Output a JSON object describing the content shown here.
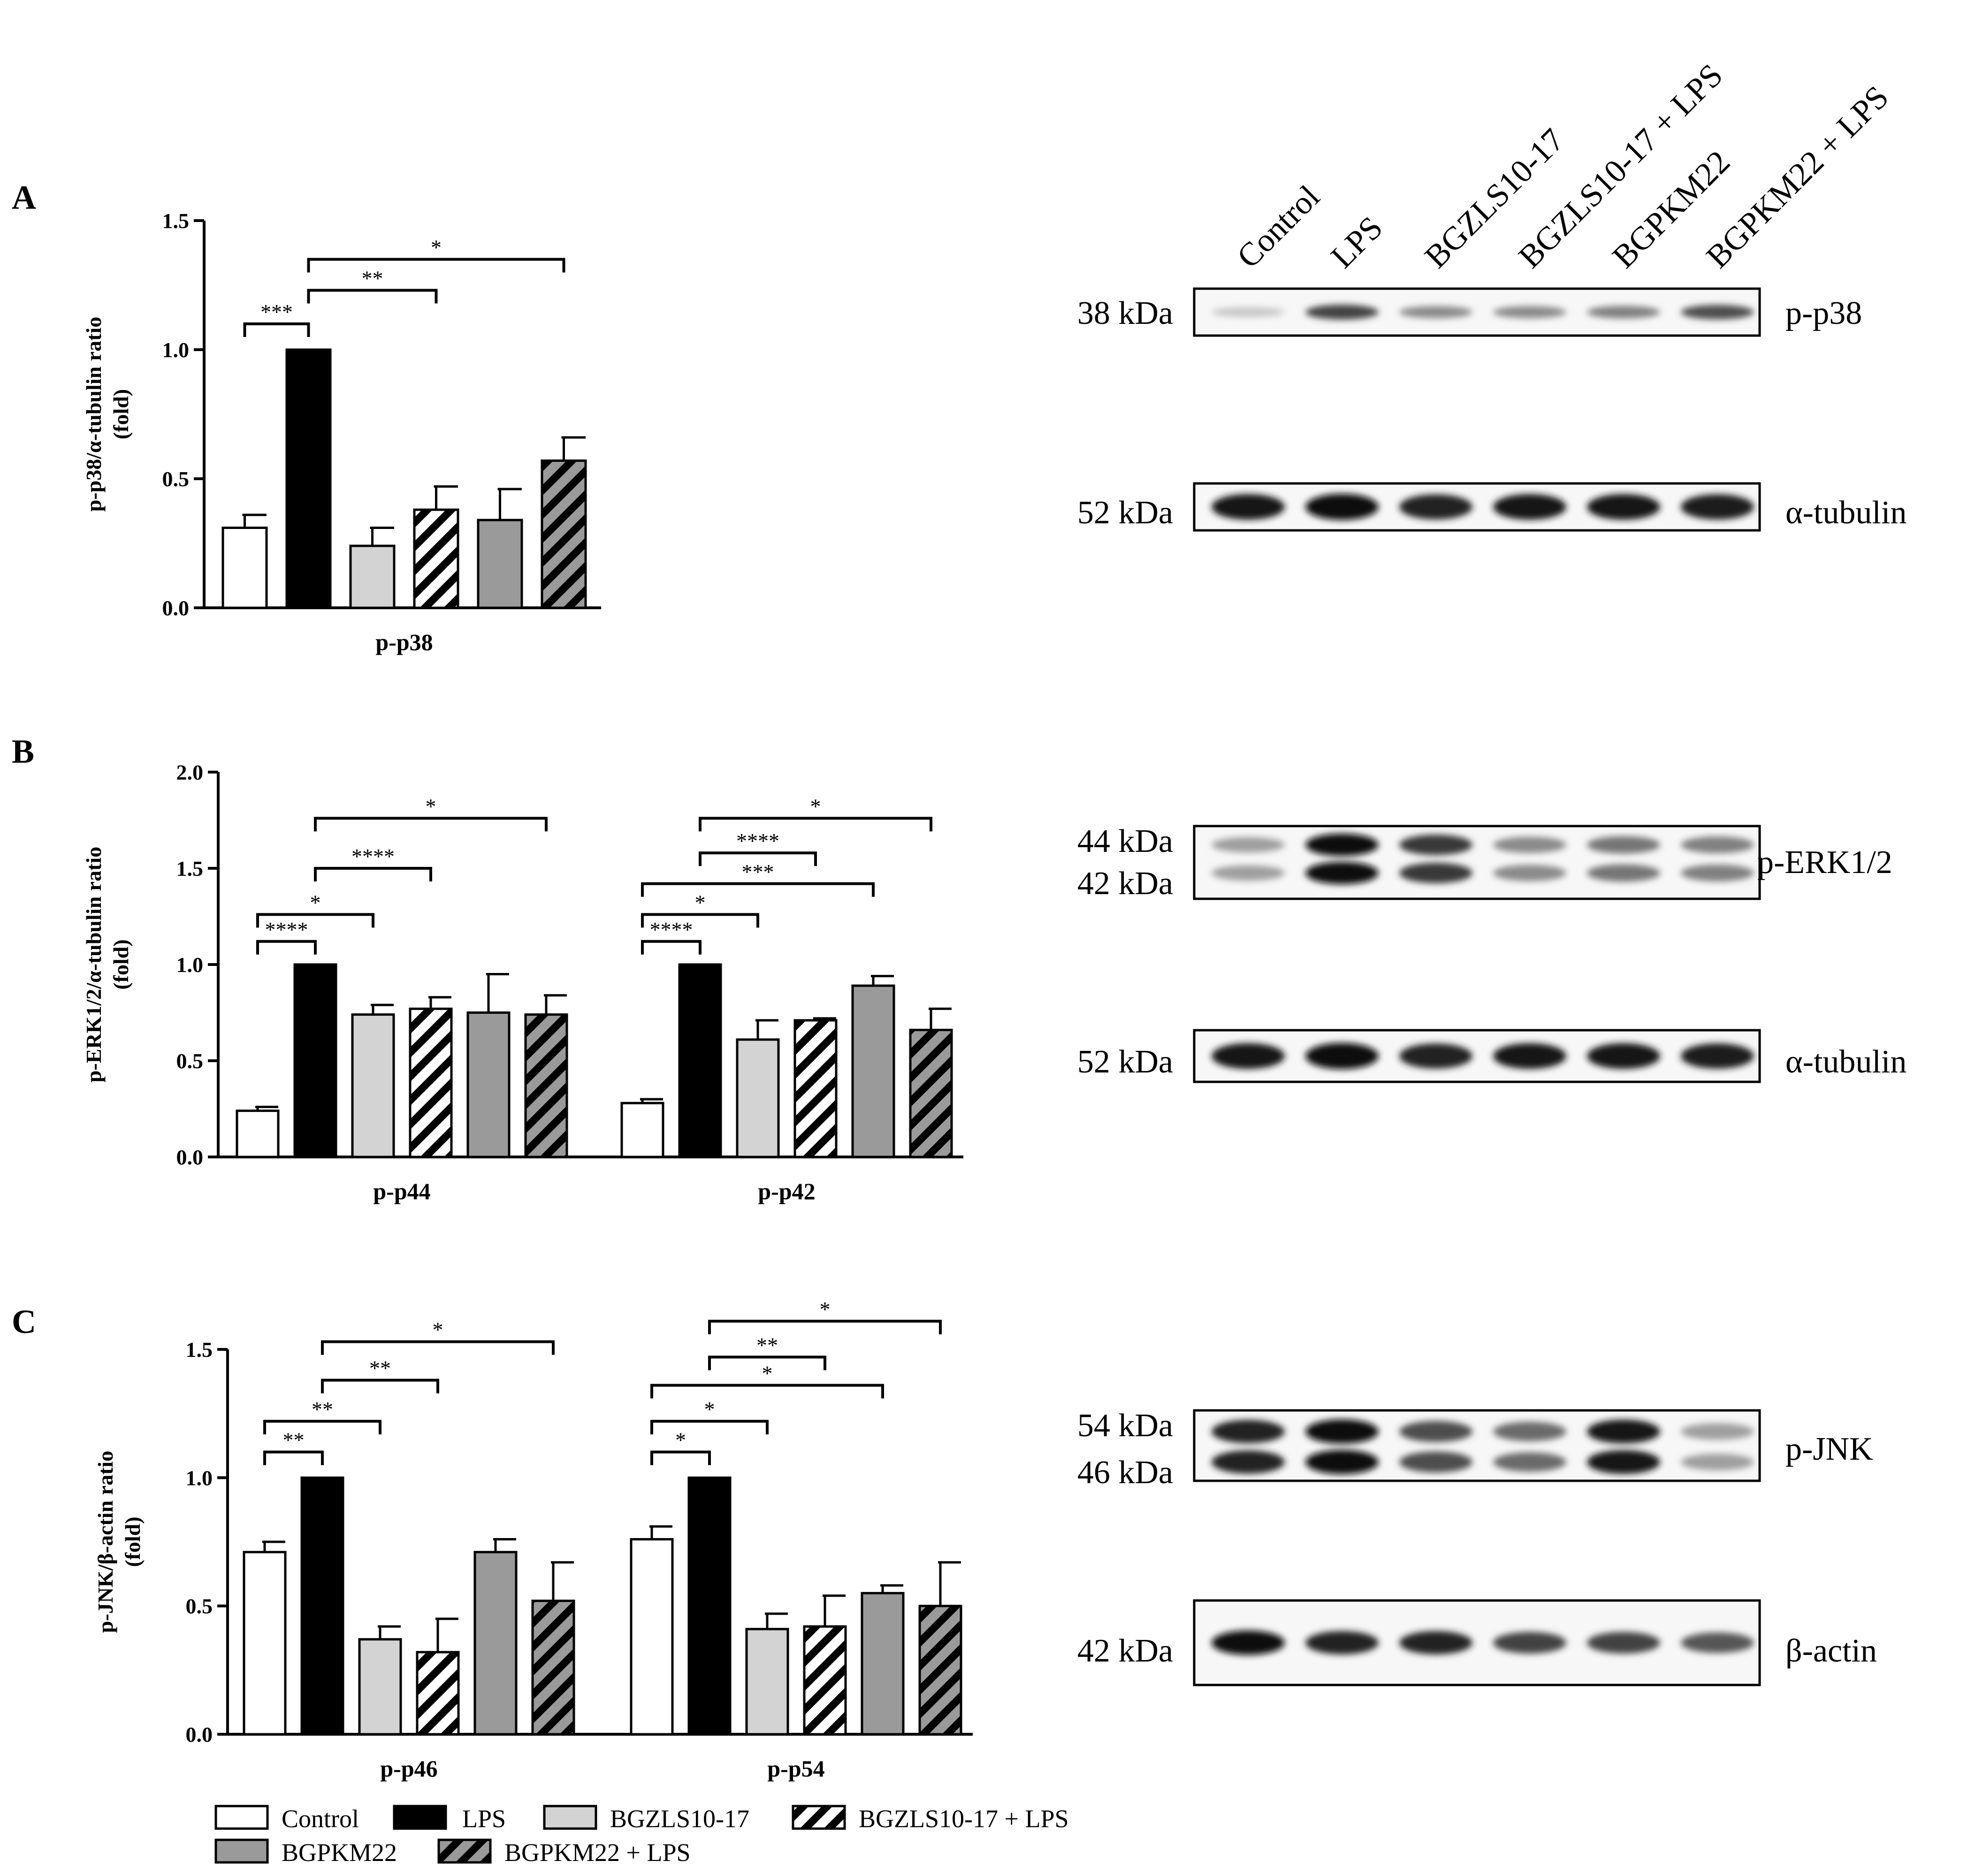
{
  "colors": {
    "Control": "#ffffff",
    "LPS": "#000000",
    "BGZLS10-17": "#d3d3d3",
    "BGZLS10-17 + LPS": "hatch-light",
    "BGPKM22": "#9a9a9a",
    "BGPKM22 + LPS": "hatch-dark"
  },
  "legend": {
    "items": [
      "Control",
      "LPS",
      "BGZLS10-17",
      "BGZLS10-17 + LPS",
      "BGPKM22",
      "BGPKM22 + LPS"
    ]
  },
  "chart_data": [
    {
      "panel": "A",
      "type": "bar",
      "ylabel": "p-p38/α-tubulin ratio",
      "ylabel2": "(fold)",
      "ylim": [
        0,
        1.5
      ],
      "yticks": [
        "0.0",
        "0.5",
        "1.0",
        "1.5"
      ],
      "yticks_values": [
        0,
        0.5,
        1.0,
        1.5
      ],
      "categories": [
        "p-p38"
      ],
      "series": [
        {
          "name": "Control",
          "values": [
            0.31
          ],
          "errors": [
            0.05
          ]
        },
        {
          "name": "LPS",
          "values": [
            1.0
          ],
          "errors": [
            0
          ]
        },
        {
          "name": "BGZLS10-17",
          "values": [
            0.24
          ],
          "errors": [
            0.07
          ]
        },
        {
          "name": "BGZLS10-17 + LPS",
          "values": [
            0.38
          ],
          "errors": [
            0.09
          ]
        },
        {
          "name": "BGPKM22",
          "values": [
            0.34
          ],
          "errors": [
            0.12
          ]
        },
        {
          "name": "BGPKM22 + LPS",
          "values": [
            0.57
          ],
          "errors": [
            0.09
          ]
        }
      ],
      "significance": [
        {
          "group": 0,
          "from": 0,
          "to": 1,
          "label": "***",
          "level": 1.1
        },
        {
          "group": 0,
          "from": 1,
          "to": 3,
          "label": "**",
          "level": 1.23
        },
        {
          "group": 0,
          "from": 1,
          "to": 5,
          "label": "*",
          "level": 1.35
        }
      ]
    },
    {
      "panel": "B",
      "type": "bar",
      "ylabel": "p-ERK1/2/α-tubulin ratio",
      "ylabel2": "(fold)",
      "ylim": [
        0,
        2.0
      ],
      "yticks": [
        "0.0",
        "0.5",
        "1.0",
        "1.5",
        "2.0"
      ],
      "yticks_values": [
        0,
        0.5,
        1.0,
        1.5,
        2.0
      ],
      "categories": [
        "p-p44",
        "p-p42"
      ],
      "series": [
        {
          "name": "Control",
          "values": [
            0.24,
            0.28
          ],
          "errors": [
            0.02,
            0.02
          ]
        },
        {
          "name": "LPS",
          "values": [
            1.0,
            1.0
          ],
          "errors": [
            0,
            0
          ]
        },
        {
          "name": "BGZLS10-17",
          "values": [
            0.74,
            0.61
          ],
          "errors": [
            0.05,
            0.1
          ]
        },
        {
          "name": "BGZLS10-17 + LPS",
          "values": [
            0.77,
            0.71
          ],
          "errors": [
            0.06,
            0.01
          ]
        },
        {
          "name": "BGPKM22",
          "values": [
            0.75,
            0.89
          ],
          "errors": [
            0.2,
            0.05
          ]
        },
        {
          "name": "BGPKM22 + LPS",
          "values": [
            0.74,
            0.66
          ],
          "errors": [
            0.1,
            0.11
          ]
        }
      ],
      "significance": [
        {
          "group": 0,
          "from": 0,
          "to": 1,
          "label": "****",
          "level": 1.12
        },
        {
          "group": 0,
          "from": 0,
          "to": 2,
          "label": "*",
          "level": 1.26
        },
        {
          "group": 0,
          "from": 1,
          "to": 3,
          "label": "****",
          "level": 1.5
        },
        {
          "group": 0,
          "from": 1,
          "to": 5,
          "label": "*",
          "level": 1.76
        },
        {
          "group": 1,
          "from": 0,
          "to": 1,
          "label": "****",
          "level": 1.12
        },
        {
          "group": 1,
          "from": 0,
          "to": 2,
          "label": "*",
          "level": 1.26
        },
        {
          "group": 1,
          "from": 0,
          "to": 4,
          "label": "***",
          "level": 1.42
        },
        {
          "group": 1,
          "from": 1,
          "to": 3,
          "label": "****",
          "level": 1.58
        },
        {
          "group": 1,
          "from": 1,
          "to": 5,
          "label": "*",
          "level": 1.76
        }
      ]
    },
    {
      "panel": "C",
      "type": "bar",
      "ylabel": "p-JNK/β-actin ratio",
      "ylabel2": "(fold)",
      "ylim": [
        0,
        1.5
      ],
      "yticks": [
        "0.0",
        "0.5",
        "1.0",
        "1.5"
      ],
      "yticks_values": [
        0,
        0.5,
        1.0,
        1.5
      ],
      "categories": [
        "p-p46",
        "p-p54"
      ],
      "series": [
        {
          "name": "Control",
          "values": [
            0.71,
            0.76
          ],
          "errors": [
            0.04,
            0.05
          ]
        },
        {
          "name": "LPS",
          "values": [
            1.0,
            1.0
          ],
          "errors": [
            0,
            0
          ]
        },
        {
          "name": "BGZLS10-17",
          "values": [
            0.37,
            0.41
          ],
          "errors": [
            0.05,
            0.06
          ]
        },
        {
          "name": "BGZLS10-17 + LPS",
          "values": [
            0.32,
            0.42
          ],
          "errors": [
            0.13,
            0.12
          ]
        },
        {
          "name": "BGPKM22",
          "values": [
            0.71,
            0.55
          ],
          "errors": [
            0.05,
            0.03
          ]
        },
        {
          "name": "BGPKM22 + LPS",
          "values": [
            0.52,
            0.5
          ],
          "errors": [
            0.15,
            0.17
          ]
        }
      ],
      "significance": [
        {
          "group": 0,
          "from": 0,
          "to": 1,
          "label": "**",
          "level": 1.1
        },
        {
          "group": 0,
          "from": 0,
          "to": 2,
          "label": "**",
          "level": 1.22
        },
        {
          "group": 0,
          "from": 1,
          "to": 3,
          "label": "**",
          "level": 1.38
        },
        {
          "group": 0,
          "from": 1,
          "to": 5,
          "label": "*",
          "level": 1.53
        },
        {
          "group": 1,
          "from": 0,
          "to": 1,
          "label": "*",
          "level": 1.1
        },
        {
          "group": 1,
          "from": 0,
          "to": 2,
          "label": "*",
          "level": 1.22
        },
        {
          "group": 1,
          "from": 0,
          "to": 4,
          "label": "*",
          "level": 1.36
        },
        {
          "group": 1,
          "from": 1,
          "to": 3,
          "label": "**",
          "level": 1.47
        },
        {
          "group": 1,
          "from": 1,
          "to": 5,
          "label": "*",
          "level": 1.61
        }
      ]
    }
  ],
  "blots": {
    "lane_labels": [
      "Control",
      "LPS",
      "BGZLS10-17",
      "BGZLS10-17 + LPS",
      "BGPKM22",
      "BGPKM22 + LPS"
    ],
    "panels": [
      {
        "kda": [
          "38 kDa"
        ],
        "name": "p-p38",
        "band_intensity": [
          0.1,
          0.75,
          0.4,
          0.4,
          0.45,
          0.7
        ]
      },
      {
        "kda": [
          "52 kDa"
        ],
        "name": "α-tubulin",
        "band_intensity": [
          0.95,
          1.0,
          0.9,
          0.95,
          0.95,
          0.92
        ]
      },
      {
        "kda": [
          "44 kDa",
          "42 kDa"
        ],
        "name": "p-ERK1/2",
        "band_intensity": [
          0.3,
          1.0,
          0.8,
          0.4,
          0.5,
          0.45
        ]
      },
      {
        "kda": [
          "52 kDa"
        ],
        "name": "α-tubulin",
        "band_intensity": [
          0.95,
          1.0,
          0.9,
          0.95,
          0.95,
          0.92
        ]
      },
      {
        "kda": [
          "54 kDa",
          "46 kDa"
        ],
        "name": "p-JNK",
        "band_intensity": [
          0.9,
          1.0,
          0.7,
          0.55,
          0.95,
          0.3
        ]
      },
      {
        "kda": [
          "42 kDa"
        ],
        "name": "β-actin",
        "band_intensity": [
          1.0,
          0.9,
          0.9,
          0.75,
          0.75,
          0.65
        ]
      }
    ]
  },
  "panel_letters": [
    "A",
    "B",
    "C"
  ]
}
